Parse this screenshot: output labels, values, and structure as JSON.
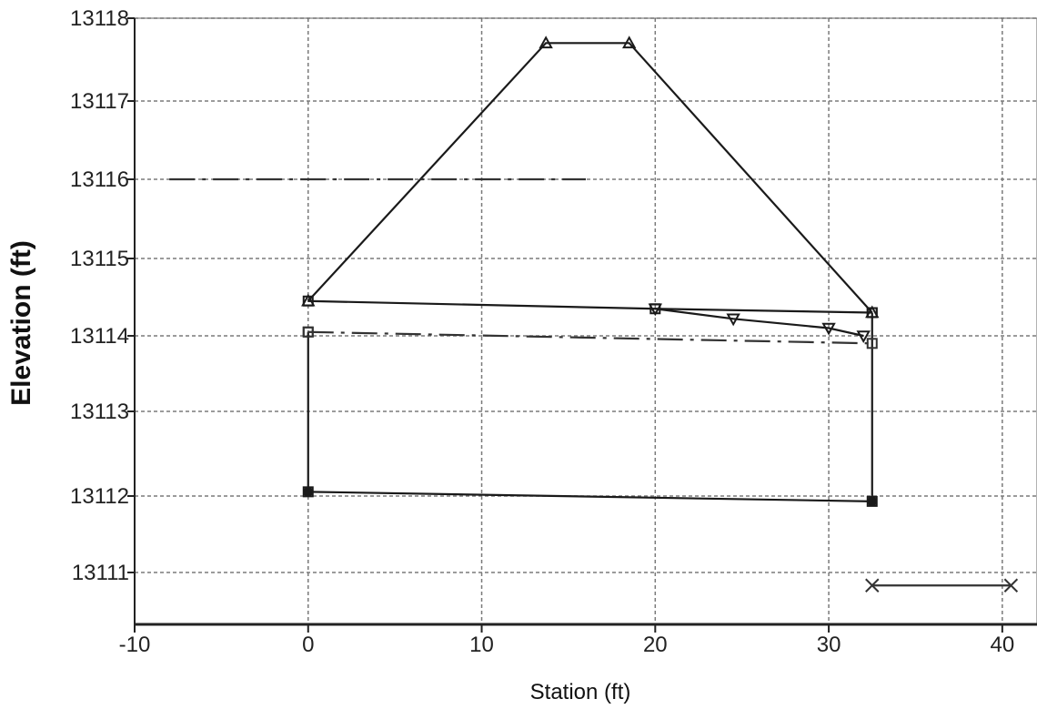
{
  "chart_data": {
    "type": "line",
    "title": "",
    "xlabel": "Station (ft)",
    "ylabel": "Elevation (ft)",
    "xlim": [
      -10,
      42
    ],
    "ylim": [
      13110.4,
      13318
    ],
    "grid": true,
    "x_ticks": [
      {
        "value": -10,
        "label": "-10"
      },
      {
        "value": 0,
        "label": "0"
      },
      {
        "value": 10,
        "label": "10"
      },
      {
        "value": 20,
        "label": "20"
      },
      {
        "value": 30,
        "label": "30"
      },
      {
        "value": 40,
        "label": "40"
      }
    ],
    "y_ticks": [
      {
        "value": 13111,
        "label": "13111"
      },
      {
        "value": 13112,
        "label": "13112"
      },
      {
        "value": 13113,
        "label": "13113"
      },
      {
        "value": 13114,
        "label": "13114"
      },
      {
        "value": 13115,
        "label": "13115"
      },
      {
        "value": 13116,
        "label": "13116"
      },
      {
        "value": 13117,
        "label": "13117"
      },
      {
        "value": 13118,
        "label": "13118"
      }
    ],
    "series": [
      {
        "style": "solid",
        "marker": "triangle-up",
        "color": "#1a1a1a",
        "points": [
          [
            0,
            13114.45
          ],
          [
            13.7,
            13117.7
          ],
          [
            18.5,
            13117.7
          ],
          [
            32.5,
            13114.3
          ]
        ]
      },
      {
        "style": "solid",
        "marker": "square",
        "color": "#1a1a1a",
        "points": [
          [
            0,
            13114.45
          ],
          [
            20,
            13114.35
          ],
          [
            32.5,
            13114.3
          ]
        ]
      },
      {
        "style": "solid",
        "marker": "triangle-down",
        "color": "#1a1a1a",
        "points": [
          [
            20,
            13114.35
          ],
          [
            24.5,
            13114.22
          ],
          [
            30,
            13114.1
          ],
          [
            32,
            13114.0
          ]
        ]
      },
      {
        "style": "solid",
        "marker": "square",
        "color": "#1a1a1a",
        "points": [
          [
            0,
            13114.05
          ],
          [
            0,
            13112.05
          ]
        ]
      },
      {
        "style": "solid",
        "marker": "circle",
        "color": "#1a1a1a",
        "points": [
          [
            0,
            13112.05
          ],
          [
            32.5,
            13111.93
          ]
        ]
      },
      {
        "style": "solid",
        "marker": "square",
        "color": "#1a1a1a",
        "points": [
          [
            32.5,
            13114.3
          ],
          [
            32.5,
            13111.93
          ]
        ]
      },
      {
        "style": "dashed",
        "marker": "square",
        "color": "#333333",
        "points": [
          [
            0,
            13114.05
          ],
          [
            32.5,
            13113.9
          ]
        ]
      },
      {
        "style": "dashed",
        "marker": "none",
        "color": "#333333",
        "points": [
          [
            -8,
            13116.0
          ],
          [
            16,
            13116.0
          ]
        ]
      },
      {
        "style": "solid",
        "marker": "x",
        "color": "#333333",
        "points": [
          [
            32.5,
            13110.85
          ],
          [
            40.5,
            13110.85
          ]
        ]
      }
    ]
  }
}
